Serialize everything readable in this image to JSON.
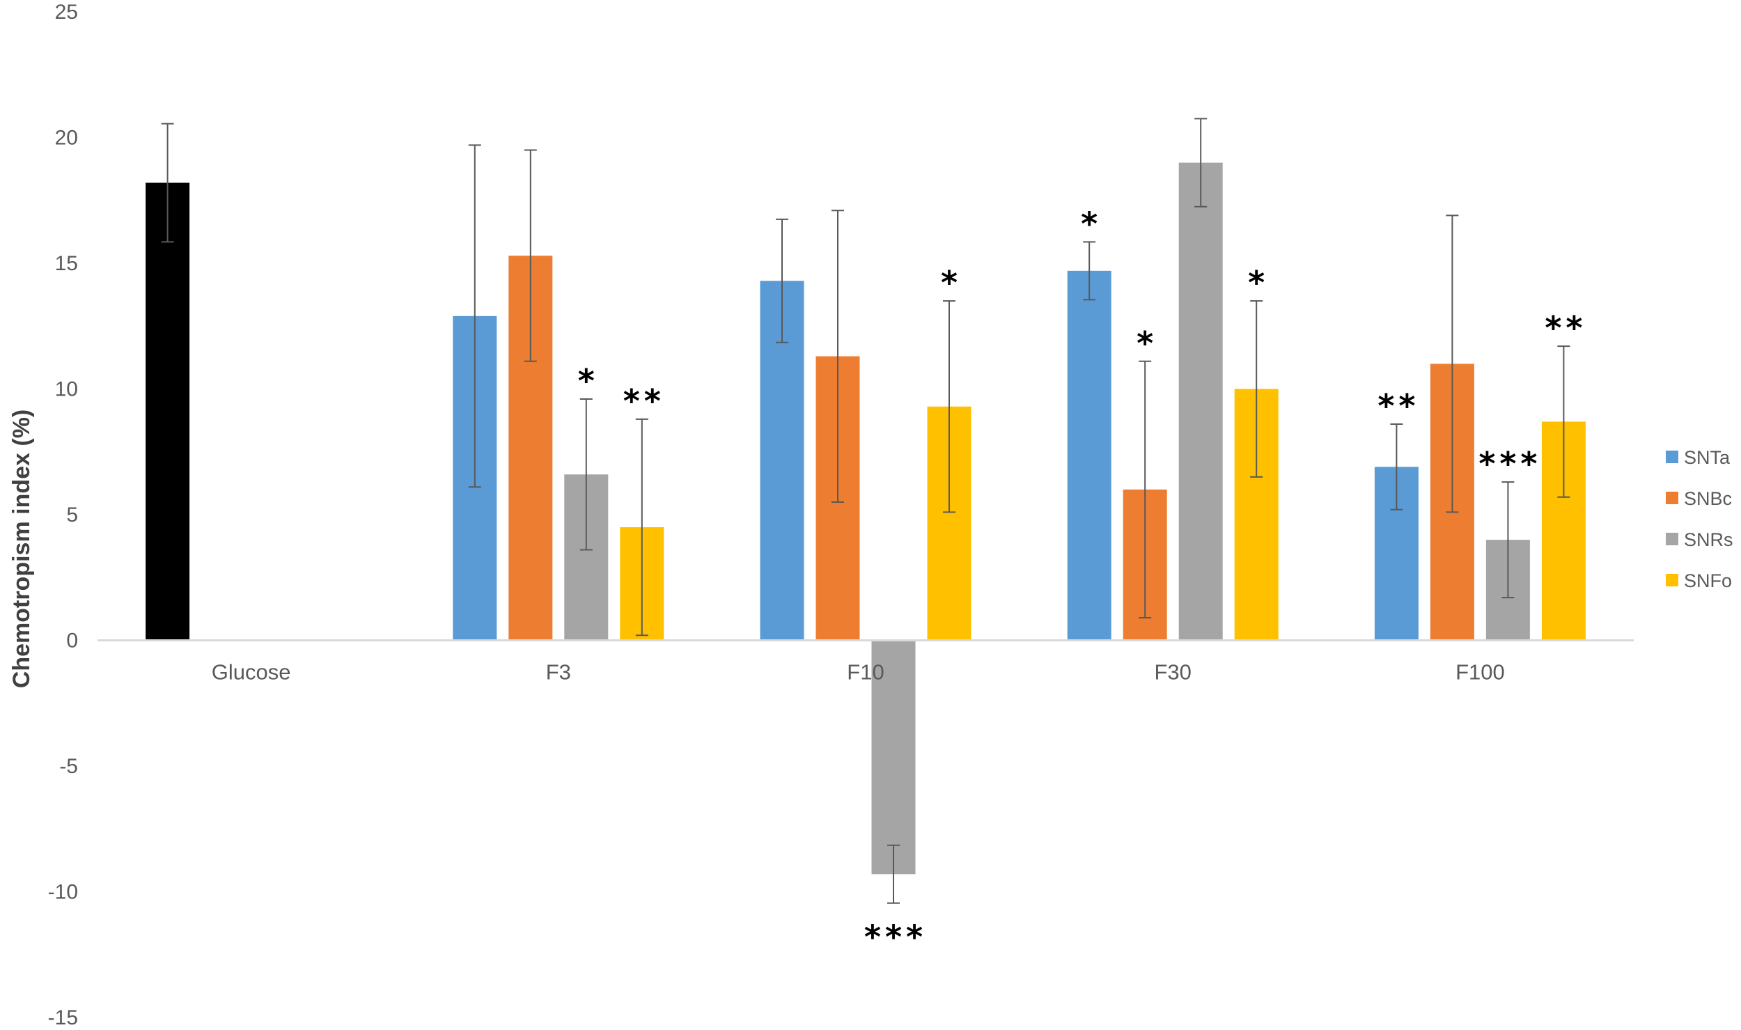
{
  "chart_data": {
    "type": "bar",
    "title": "",
    "xlabel": "",
    "ylabel": "Chemotropism index (%)",
    "ylim": [
      -15,
      25
    ],
    "yticks": [
      -15,
      -10,
      -5,
      0,
      5,
      10,
      15,
      20,
      25
    ],
    "grid": false,
    "legend_position": "right",
    "categories": [
      "Glucose",
      "F3",
      "F10",
      "F30",
      "F100"
    ],
    "control": {
      "category": "Glucose",
      "value": 18.2,
      "error": 2.35,
      "color": "#000000"
    },
    "series": [
      {
        "name": "SNTa",
        "color": "#5B9BD5",
        "values": [
          null,
          12.9,
          14.3,
          14.7,
          6.9
        ],
        "errors": [
          null,
          6.8,
          2.45,
          1.15,
          1.7
        ],
        "significance": [
          null,
          "",
          "",
          "*",
          "**"
        ]
      },
      {
        "name": "SNBc",
        "color": "#ED7D31",
        "values": [
          null,
          15.3,
          11.3,
          6.0,
          11.0
        ],
        "errors": [
          null,
          4.2,
          5.8,
          5.1,
          5.9
        ],
        "significance": [
          null,
          "",
          "",
          "*",
          ""
        ]
      },
      {
        "name": "SNRs",
        "color": "#A5A5A5",
        "values": [
          null,
          6.6,
          -9.3,
          19.0,
          4.0
        ],
        "errors": [
          null,
          3.0,
          1.15,
          1.75,
          2.3
        ],
        "significance": [
          null,
          "*",
          "***",
          "",
          "***"
        ]
      },
      {
        "name": "SNFo",
        "color": "#FFC000",
        "values": [
          null,
          4.5,
          9.3,
          10.0,
          8.7
        ],
        "errors": [
          null,
          4.3,
          4.2,
          3.5,
          3.0
        ],
        "significance": [
          null,
          "**",
          "*",
          "*",
          "**"
        ]
      }
    ]
  }
}
